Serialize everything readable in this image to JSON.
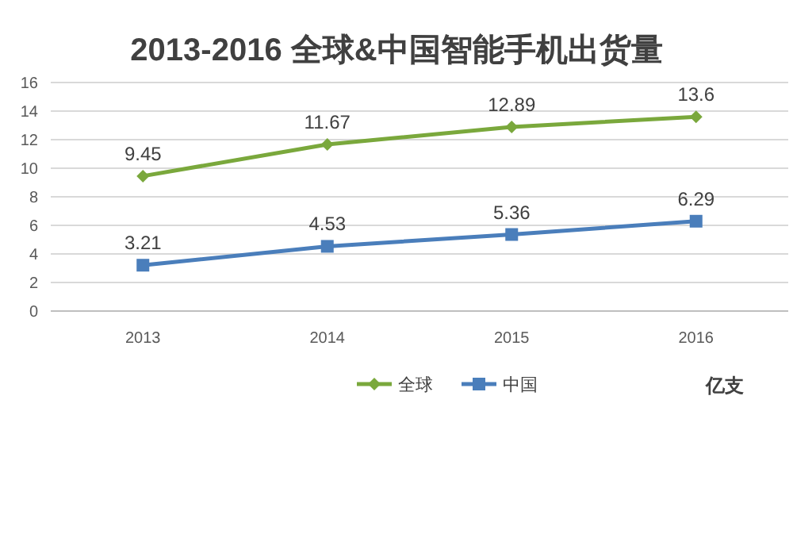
{
  "chart_data": {
    "type": "line",
    "title": "2013-2016 全球&中国智能手机出货量",
    "categories": [
      "2013",
      "2014",
      "2015",
      "2016"
    ],
    "series": [
      {
        "name": "全球",
        "color": "#7aa83c",
        "marker": "diamond",
        "values": [
          9.45,
          11.67,
          12.89,
          13.6
        ]
      },
      {
        "name": "中国",
        "color": "#4a7ebb",
        "marker": "square",
        "values": [
          3.21,
          4.53,
          5.36,
          6.29
        ]
      }
    ],
    "ylim": [
      0,
      16
    ],
    "yticks": [
      0,
      2,
      4,
      6,
      8,
      10,
      12,
      14,
      16
    ],
    "grid": "y",
    "legend": "bottom",
    "data_labels": true,
    "annotations": [
      "亿支"
    ]
  }
}
